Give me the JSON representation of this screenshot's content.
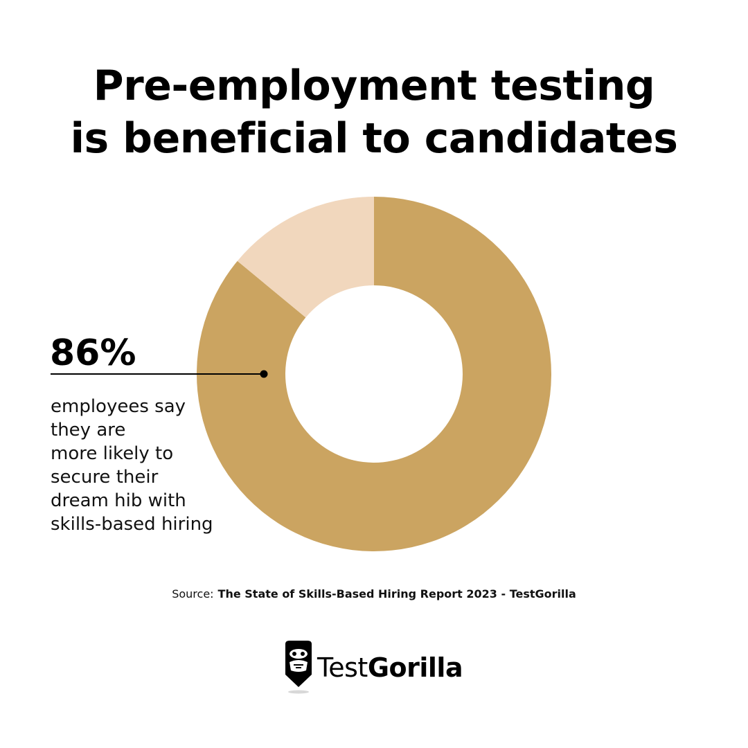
{
  "title_lines": [
    "Pre-employment testing",
    "is beneficial to candidates"
  ],
  "chart_data": {
    "type": "pie",
    "donut": true,
    "slices": [
      {
        "label": "86%",
        "value": 86,
        "color": "#CBA461"
      },
      {
        "label": "",
        "value": 14,
        "color": "#F1D7BD"
      }
    ],
    "annotation": {
      "value_label": "86%",
      "text_lines": [
        "employees say",
        "they are",
        "more likely to",
        "secure their",
        "dream hib with",
        "skills-based hiring"
      ]
    }
  },
  "source": {
    "prefix": "Source:",
    "text": "The State of Skills-Based Hiring Report 2023 - TestGorilla"
  },
  "brand": {
    "part1": "Test",
    "part2": "Gorilla",
    "icon": "gorilla-icon"
  },
  "colors": {
    "accent": "#CBA461",
    "accent_light": "#F1D7BD",
    "text": "#000000"
  }
}
